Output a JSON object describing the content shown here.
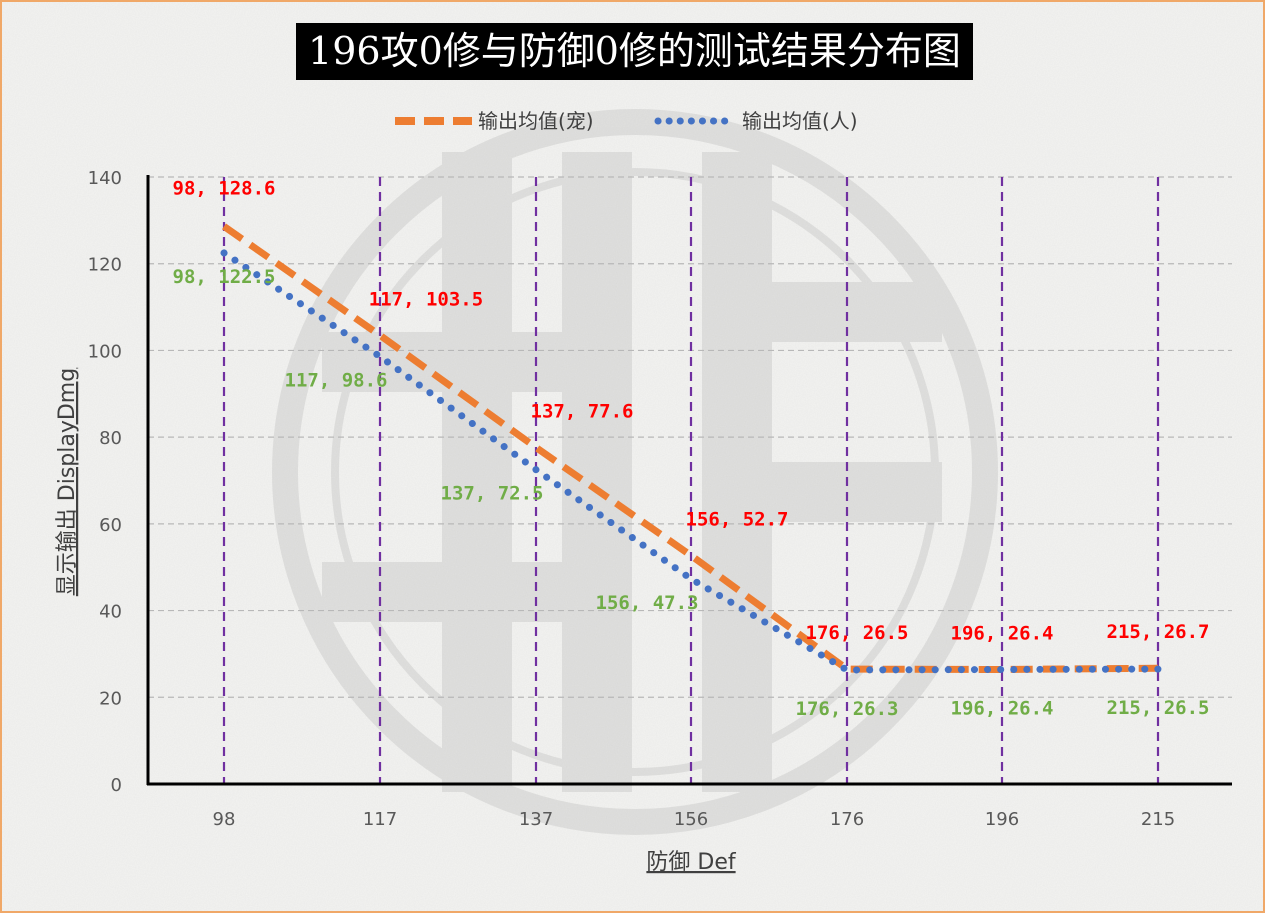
{
  "title": "196攻0修与防御0修的测试结果分布图",
  "colors": {
    "pet": "#ed7d31",
    "human": "#4472c4",
    "pet_label": "#ff0000",
    "human_label": "#70ad47",
    "vline": "#7030a0",
    "border": "#f0a868"
  },
  "chart_data": {
    "type": "line",
    "title": "196攻0修与防御0修的测试结果分布图",
    "xlabel": "防御 Def",
    "ylabel": "显示输出 DisplayDmg",
    "categories": [
      "98",
      "117",
      "137",
      "156",
      "176",
      "196",
      "215"
    ],
    "series": [
      {
        "name": "输出均值(宠)",
        "style": "dashed",
        "color": "#ed7d31",
        "values": [
          128.6,
          103.5,
          77.6,
          52.7,
          26.5,
          26.4,
          26.7
        ],
        "labels": [
          "98, 128.6",
          "117, 103.5",
          "137, 77.6",
          "156, 52.7",
          "176, 26.5",
          "196, 26.4",
          "215, 26.7"
        ]
      },
      {
        "name": "输出均值(人)",
        "style": "dotted",
        "color": "#4472c4",
        "values": [
          122.5,
          98.6,
          72.5,
          47.3,
          26.3,
          26.4,
          26.5
        ],
        "labels": [
          "98, 122.5",
          "117, 98.6",
          "137, 72.5",
          "156, 47.3",
          "176, 26.3",
          "196, 26.4",
          "215, 26.5"
        ]
      }
    ],
    "ylim": [
      0,
      140
    ],
    "yticks": [
      0,
      20,
      40,
      60,
      80,
      100,
      120,
      140
    ],
    "grid": true,
    "legend": "top-center"
  }
}
